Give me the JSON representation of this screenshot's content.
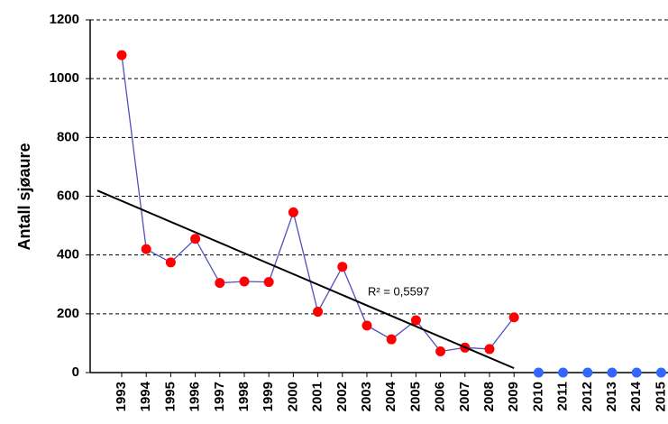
{
  "chart_data": {
    "type": "line",
    "y_label": "Antall sjøaure",
    "categories": [
      "1993",
      "1994",
      "1995",
      "1996",
      "1997",
      "1998",
      "1999",
      "2000",
      "2001",
      "2002",
      "2003",
      "2004",
      "2005",
      "2006",
      "2007",
      "2008",
      "2009",
      "2010",
      "2011",
      "2012",
      "2013",
      "2014",
      "2015"
    ],
    "series": [
      {
        "color": "#5050c0",
        "marker_color": "#ff0000",
        "line": true,
        "values": [
          1080,
          420,
          375,
          455,
          305,
          310,
          308,
          545,
          207,
          360,
          160,
          113,
          178,
          72,
          85,
          80,
          188,
          null,
          null,
          null,
          null,
          null,
          null
        ]
      },
      {
        "color": "#3366ff",
        "marker_color": "#3366ff",
        "line": false,
        "values": [
          null,
          null,
          null,
          null,
          null,
          null,
          null,
          null,
          null,
          null,
          null,
          null,
          null,
          null,
          null,
          null,
          null,
          0,
          0,
          0,
          0,
          0,
          0
        ]
      }
    ],
    "trendline": {
      "start": 584,
      "end": 15,
      "color": "#000000",
      "label": "R² = 0,5597"
    },
    "ylim": [
      0,
      1200
    ],
    "yticks": [
      0,
      200,
      400,
      600,
      800,
      1000,
      1200
    ],
    "grid": true
  }
}
